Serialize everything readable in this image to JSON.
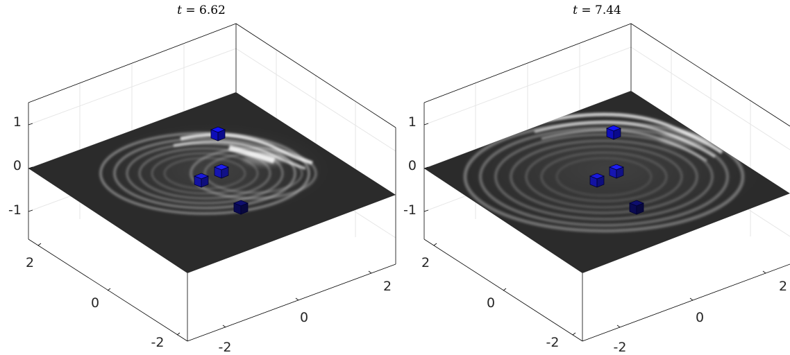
{
  "panels": [
    {
      "title_var": "t",
      "title_eq": " = ",
      "title_value": "6.62",
      "z_ticks": [
        "1",
        "0",
        "-1"
      ],
      "y_ticks": [
        "2",
        "0",
        "-2"
      ],
      "x_ticks": [
        "-2",
        "0",
        "2"
      ],
      "cubes": [
        {
          "id": "cube-1",
          "color": "#1010d8"
        },
        {
          "id": "cube-2",
          "color": "#1a1ad0"
        },
        {
          "id": "cube-3",
          "color": "#1616c0"
        },
        {
          "id": "cube-4",
          "color": "#0c0c60"
        }
      ]
    },
    {
      "title_var": "t",
      "title_eq": " = ",
      "title_value": "7.44",
      "z_ticks": [
        "1",
        "0",
        "-1"
      ],
      "y_ticks": [
        "2",
        "0",
        "-2"
      ],
      "x_ticks": [
        "-2",
        "0",
        "2"
      ],
      "cubes": [
        {
          "id": "cube-1",
          "color": "#1010d8"
        },
        {
          "id": "cube-2",
          "color": "#1a1ad0"
        },
        {
          "id": "cube-3",
          "color": "#1616c0"
        },
        {
          "id": "cube-4",
          "color": "#0c0c60"
        }
      ]
    }
  ],
  "colors": {
    "plane": "#2b2b2b",
    "box": "#000000",
    "grid": "#e6e6e6",
    "wave": "#f0f0f0"
  }
}
